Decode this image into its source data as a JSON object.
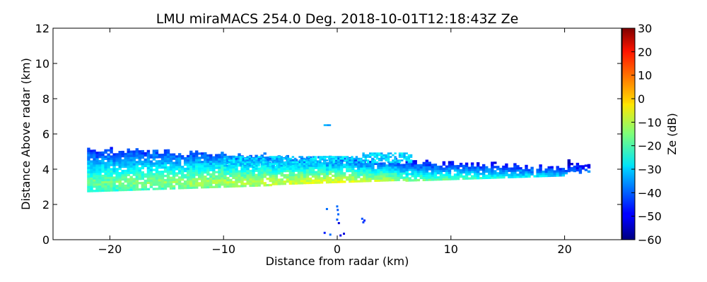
{
  "chart_data": {
    "type": "heatmap",
    "title": "LMU miraMACS 254.0 Deg. 2018-10-01T12:18:43Z  Ze",
    "xlabel": "Distance from radar (km)",
    "ylabel": "Distance Above radar  (km)",
    "xlim": [
      -25,
      25
    ],
    "ylim": [
      0,
      12
    ],
    "x_ticks": [
      -20,
      -10,
      0,
      10,
      20
    ],
    "x_tick_labels": [
      "−20",
      "−10",
      "0",
      "10",
      "20"
    ],
    "y_ticks": [
      0,
      2,
      4,
      6,
      8,
      10,
      12
    ],
    "y_tick_labels": [
      "0",
      "2",
      "4",
      "6",
      "8",
      "10",
      "12"
    ],
    "colorbar": {
      "label": "Ze (dB)",
      "range": [
        -60,
        30
      ],
      "colormap": "jet",
      "ticks": [
        -60,
        -50,
        -40,
        -30,
        -20,
        -10,
        0,
        10,
        20,
        30
      ],
      "tick_labels": [
        "−60",
        "−50",
        "−40",
        "−30",
        "−20",
        "−10",
        "0",
        "10",
        "20",
        "30"
      ]
    },
    "features": [
      {
        "name": "main-cloud-band",
        "description_values": {
          "x_range_km": [
            -22,
            22
          ],
          "base_km_at_x_minus22": 2.7,
          "top_km_at_x_minus22": 5.1,
          "base_km_at_x_plus20": 3.6,
          "top_km_at_x_plus20": 4.0,
          "core_height_km": 3.2,
          "core_ze_db": -5,
          "edge_ze_db": -30
        }
      },
      {
        "name": "upper-thin-layer",
        "description_values": {
          "x_range_km": [
            -10,
            6.5
          ],
          "height_km": [
            4.1,
            4.8
          ],
          "ze_db": -30
        }
      },
      {
        "name": "isolated-echo",
        "description_values": {
          "x_km": -1.2,
          "height_km": 6.5,
          "ze_db": -35
        }
      },
      {
        "name": "low-level-echoes",
        "description_values": {
          "x_range_km": [
            -1.5,
            2.5
          ],
          "height_km": [
            0.3,
            2.0
          ],
          "ze_db": -45
        }
      }
    ]
  }
}
